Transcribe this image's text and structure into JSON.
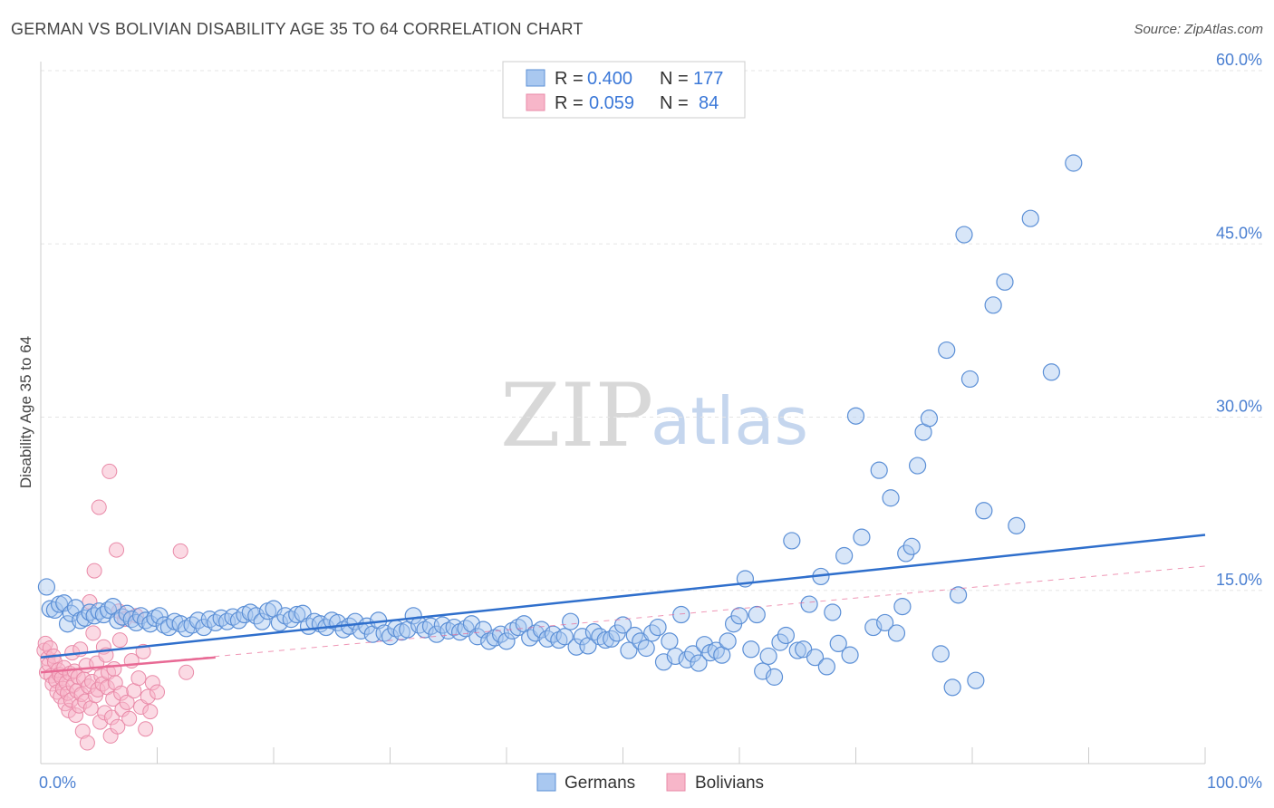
{
  "title": "GERMAN VS BOLIVIAN DISABILITY AGE 35 TO 64 CORRELATION CHART",
  "source": "Source: ZipAtlas.com",
  "watermark": {
    "zip": "ZIP",
    "atlas": "atlas"
  },
  "colors": {
    "germans_fill": "#a9c8f0",
    "germans_stroke": "#5b8fd6",
    "germans_line": "#2f6fcc",
    "bolivians_fill": "#f7b6c9",
    "bolivians_stroke": "#e98aa8",
    "bolivians_line": "#e86a95",
    "axis_tick": "#4a7fd1",
    "grid": "#e5e5e5"
  },
  "legend": {
    "rows": [
      {
        "r_label": "R =",
        "r_value": "0.400",
        "n_label": "N =",
        "n_value": "177"
      },
      {
        "r_label": "R =",
        "r_value": "0.059",
        "n_label": "N =",
        "n_value": "84"
      }
    ]
  },
  "bottom_legend": [
    "Germans",
    "Bolivians"
  ],
  "chart_data": {
    "type": "scatter",
    "title": "GERMAN VS BOLIVIAN DISABILITY AGE 35 TO 64 CORRELATION CHART",
    "xlabel": "",
    "ylabel": "Disability Age 35 to 64",
    "xlim": [
      0,
      100
    ],
    "ylim": [
      0,
      60
    ],
    "x_tick_labels": [
      {
        "value": 0,
        "label": "0.0%"
      },
      {
        "value": 100,
        "label": "100.0%"
      }
    ],
    "y_tick_labels": [
      {
        "value": 15,
        "label": "15.0%"
      },
      {
        "value": 30,
        "label": "30.0%"
      },
      {
        "value": 45,
        "label": "45.0%"
      },
      {
        "value": 60,
        "label": "60.0%"
      }
    ],
    "series": [
      {
        "name": "Germans",
        "R": 0.4,
        "N": 177,
        "trend": {
          "x": [
            0,
            100
          ],
          "y": [
            9.2,
            19.8
          ]
        },
        "points": [
          [
            0.5,
            15.3
          ],
          [
            0.8,
            13.4
          ],
          [
            1.2,
            13.3
          ],
          [
            1.6,
            13.8
          ],
          [
            2.0,
            13.9
          ],
          [
            2.3,
            12.1
          ],
          [
            2.6,
            13.0
          ],
          [
            3.0,
            13.5
          ],
          [
            3.4,
            12.4
          ],
          [
            3.8,
            12.6
          ],
          [
            4.2,
            13.1
          ],
          [
            4.6,
            12.8
          ],
          [
            5.0,
            13.2
          ],
          [
            5.4,
            12.9
          ],
          [
            5.8,
            13.3
          ],
          [
            6.2,
            13.6
          ],
          [
            6.6,
            12.4
          ],
          [
            7.0,
            12.7
          ],
          [
            7.4,
            13.0
          ],
          [
            7.8,
            12.5
          ],
          [
            8.2,
            12.2
          ],
          [
            8.6,
            12.8
          ],
          [
            9.0,
            12.4
          ],
          [
            9.4,
            12.1
          ],
          [
            9.8,
            12.6
          ],
          [
            10.2,
            12.8
          ],
          [
            10.6,
            12.0
          ],
          [
            11.0,
            11.8
          ],
          [
            11.5,
            12.3
          ],
          [
            12.0,
            12.1
          ],
          [
            12.5,
            11.7
          ],
          [
            13.0,
            12.0
          ],
          [
            13.5,
            12.4
          ],
          [
            14.0,
            11.8
          ],
          [
            14.5,
            12.5
          ],
          [
            15.0,
            12.2
          ],
          [
            15.5,
            12.6
          ],
          [
            16.0,
            12.3
          ],
          [
            16.5,
            12.7
          ],
          [
            17.0,
            12.4
          ],
          [
            17.5,
            12.9
          ],
          [
            18.0,
            13.1
          ],
          [
            18.5,
            12.8
          ],
          [
            19.0,
            12.3
          ],
          [
            19.5,
            13.2
          ],
          [
            20.0,
            13.4
          ],
          [
            20.5,
            12.2
          ],
          [
            21.0,
            12.8
          ],
          [
            21.5,
            12.5
          ],
          [
            22.0,
            12.9
          ],
          [
            22.5,
            13.0
          ],
          [
            23.0,
            11.9
          ],
          [
            23.5,
            12.3
          ],
          [
            24.0,
            12.1
          ],
          [
            24.5,
            11.8
          ],
          [
            25.0,
            12.4
          ],
          [
            25.5,
            12.2
          ],
          [
            26.0,
            11.6
          ],
          [
            26.5,
            11.9
          ],
          [
            27.0,
            12.3
          ],
          [
            27.5,
            11.5
          ],
          [
            28.0,
            11.9
          ],
          [
            28.5,
            11.2
          ],
          [
            29.0,
            12.4
          ],
          [
            29.5,
            11.3
          ],
          [
            30.0,
            11.0
          ],
          [
            30.5,
            11.7
          ],
          [
            31.0,
            11.4
          ],
          [
            31.5,
            11.6
          ],
          [
            32.0,
            12.8
          ],
          [
            32.5,
            12.0
          ],
          [
            33.0,
            11.6
          ],
          [
            33.5,
            11.9
          ],
          [
            34.0,
            11.2
          ],
          [
            34.5,
            12.0
          ],
          [
            35.0,
            11.5
          ],
          [
            35.5,
            11.8
          ],
          [
            36.0,
            11.4
          ],
          [
            36.5,
            11.7
          ],
          [
            37.0,
            12.1
          ],
          [
            37.5,
            11.0
          ],
          [
            38.0,
            11.6
          ],
          [
            38.5,
            10.6
          ],
          [
            39.0,
            10.9
          ],
          [
            39.5,
            11.2
          ],
          [
            40.0,
            10.6
          ],
          [
            40.5,
            11.5
          ],
          [
            41.0,
            11.8
          ],
          [
            41.5,
            12.1
          ],
          [
            42.0,
            10.9
          ],
          [
            42.5,
            11.3
          ],
          [
            43.0,
            11.6
          ],
          [
            43.5,
            10.8
          ],
          [
            44.0,
            11.2
          ],
          [
            44.5,
            10.7
          ],
          [
            45.0,
            11.0
          ],
          [
            45.5,
            12.3
          ],
          [
            46.0,
            10.1
          ],
          [
            46.5,
            11.0
          ],
          [
            47.0,
            10.2
          ],
          [
            47.5,
            11.4
          ],
          [
            48.0,
            11.0
          ],
          [
            48.5,
            10.7
          ],
          [
            49.0,
            10.8
          ],
          [
            49.5,
            11.3
          ],
          [
            50.0,
            12.0
          ],
          [
            50.5,
            9.8
          ],
          [
            51.0,
            11.1
          ],
          [
            51.5,
            10.6
          ],
          [
            52.0,
            10.0
          ],
          [
            52.5,
            11.3
          ],
          [
            53.0,
            11.8
          ],
          [
            53.5,
            8.8
          ],
          [
            54.0,
            10.6
          ],
          [
            54.5,
            9.3
          ],
          [
            55.0,
            12.9
          ],
          [
            55.5,
            9.0
          ],
          [
            56.0,
            9.5
          ],
          [
            56.5,
            8.7
          ],
          [
            57.0,
            10.3
          ],
          [
            57.5,
            9.6
          ],
          [
            58.0,
            9.8
          ],
          [
            58.5,
            9.4
          ],
          [
            59.0,
            10.6
          ],
          [
            59.5,
            12.1
          ],
          [
            60.0,
            12.8
          ],
          [
            60.5,
            16.0
          ],
          [
            61.0,
            9.9
          ],
          [
            61.5,
            12.9
          ],
          [
            62.0,
            8.0
          ],
          [
            62.5,
            9.3
          ],
          [
            63.0,
            7.5
          ],
          [
            63.5,
            10.5
          ],
          [
            64.0,
            11.1
          ],
          [
            64.5,
            19.3
          ],
          [
            65.0,
            9.8
          ],
          [
            65.5,
            9.9
          ],
          [
            66.0,
            13.8
          ],
          [
            66.5,
            9.2
          ],
          [
            67.0,
            16.2
          ],
          [
            67.5,
            8.4
          ],
          [
            68.0,
            13.1
          ],
          [
            68.5,
            10.4
          ],
          [
            69.0,
            18.0
          ],
          [
            69.5,
            9.4
          ],
          [
            70.0,
            30.1
          ],
          [
            70.5,
            19.6
          ],
          [
            71.5,
            11.8
          ],
          [
            72.0,
            25.4
          ],
          [
            72.5,
            12.2
          ],
          [
            73.0,
            23.0
          ],
          [
            73.5,
            11.3
          ],
          [
            74.0,
            13.6
          ],
          [
            74.3,
            18.2
          ],
          [
            74.8,
            18.8
          ],
          [
            75.3,
            25.8
          ],
          [
            75.8,
            28.7
          ],
          [
            76.3,
            29.9
          ],
          [
            77.3,
            9.5
          ],
          [
            77.8,
            35.8
          ],
          [
            78.3,
            6.6
          ],
          [
            78.8,
            14.6
          ],
          [
            79.3,
            45.8
          ],
          [
            79.8,
            33.3
          ],
          [
            80.3,
            7.2
          ],
          [
            81.0,
            21.9
          ],
          [
            81.8,
            39.7
          ],
          [
            82.8,
            41.7
          ],
          [
            83.8,
            20.6
          ],
          [
            85.0,
            47.2
          ],
          [
            86.8,
            33.9
          ],
          [
            88.7,
            52.0
          ]
        ]
      },
      {
        "name": "Bolivians",
        "R": 0.059,
        "N": 84,
        "trend": {
          "x": [
            0,
            15
          ],
          "y": [
            7.9,
            9.2
          ]
        },
        "trend_extended": {
          "x": [
            0,
            100
          ],
          "y": [
            7.9,
            17.1
          ]
        },
        "points": [
          [
            0.3,
            9.8
          ],
          [
            0.4,
            10.4
          ],
          [
            0.5,
            7.9
          ],
          [
            0.6,
            9.1
          ],
          [
            0.7,
            8.6
          ],
          [
            0.8,
            10.0
          ],
          [
            0.9,
            7.6
          ],
          [
            1.0,
            6.9
          ],
          [
            1.1,
            9.3
          ],
          [
            1.2,
            8.8
          ],
          [
            1.3,
            7.2
          ],
          [
            1.4,
            6.2
          ],
          [
            1.5,
            8.1
          ],
          [
            1.6,
            7.7
          ],
          [
            1.7,
            5.8
          ],
          [
            1.8,
            7.4
          ],
          [
            1.9,
            6.5
          ],
          [
            2.0,
            8.3
          ],
          [
            2.1,
            5.2
          ],
          [
            2.2,
            7.0
          ],
          [
            2.3,
            6.1
          ],
          [
            2.4,
            4.6
          ],
          [
            2.5,
            7.8
          ],
          [
            2.6,
            5.5
          ],
          [
            2.7,
            9.6
          ],
          [
            2.8,
            6.8
          ],
          [
            2.9,
            8.0
          ],
          [
            3.0,
            4.2
          ],
          [
            3.1,
            6.3
          ],
          [
            3.2,
            7.5
          ],
          [
            3.3,
            5.0
          ],
          [
            3.4,
            9.9
          ],
          [
            3.5,
            6.0
          ],
          [
            3.6,
            2.8
          ],
          [
            3.7,
            7.3
          ],
          [
            3.8,
            5.4
          ],
          [
            3.9,
            8.5
          ],
          [
            4.0,
            1.8
          ],
          [
            4.1,
            6.7
          ],
          [
            4.2,
            14.0
          ],
          [
            4.3,
            4.8
          ],
          [
            4.4,
            7.1
          ],
          [
            4.5,
            11.3
          ],
          [
            4.6,
            16.7
          ],
          [
            4.7,
            5.9
          ],
          [
            4.8,
            8.7
          ],
          [
            4.9,
            6.4
          ],
          [
            5.0,
            22.2
          ],
          [
            5.1,
            3.6
          ],
          [
            5.2,
            7.6
          ],
          [
            5.3,
            6.9
          ],
          [
            5.4,
            10.1
          ],
          [
            5.5,
            4.4
          ],
          [
            5.6,
            9.4
          ],
          [
            5.7,
            6.6
          ],
          [
            5.8,
            7.9
          ],
          [
            5.9,
            25.3
          ],
          [
            6.0,
            2.4
          ],
          [
            6.1,
            4.0
          ],
          [
            6.2,
            5.6
          ],
          [
            6.3,
            8.2
          ],
          [
            6.4,
            7.0
          ],
          [
            6.5,
            18.5
          ],
          [
            6.6,
            3.2
          ],
          [
            6.7,
            13.2
          ],
          [
            6.8,
            10.7
          ],
          [
            6.9,
            6.1
          ],
          [
            7.0,
            4.7
          ],
          [
            7.2,
            12.5
          ],
          [
            7.4,
            5.3
          ],
          [
            7.6,
            3.9
          ],
          [
            7.8,
            8.9
          ],
          [
            8.0,
            6.3
          ],
          [
            8.2,
            12.8
          ],
          [
            8.4,
            7.4
          ],
          [
            8.6,
            4.9
          ],
          [
            8.8,
            9.7
          ],
          [
            9.0,
            3.0
          ],
          [
            9.2,
            5.8
          ],
          [
            9.4,
            4.5
          ],
          [
            9.6,
            7.0
          ],
          [
            10.0,
            6.2
          ],
          [
            12.0,
            18.4
          ],
          [
            12.5,
            7.9
          ]
        ]
      }
    ]
  }
}
